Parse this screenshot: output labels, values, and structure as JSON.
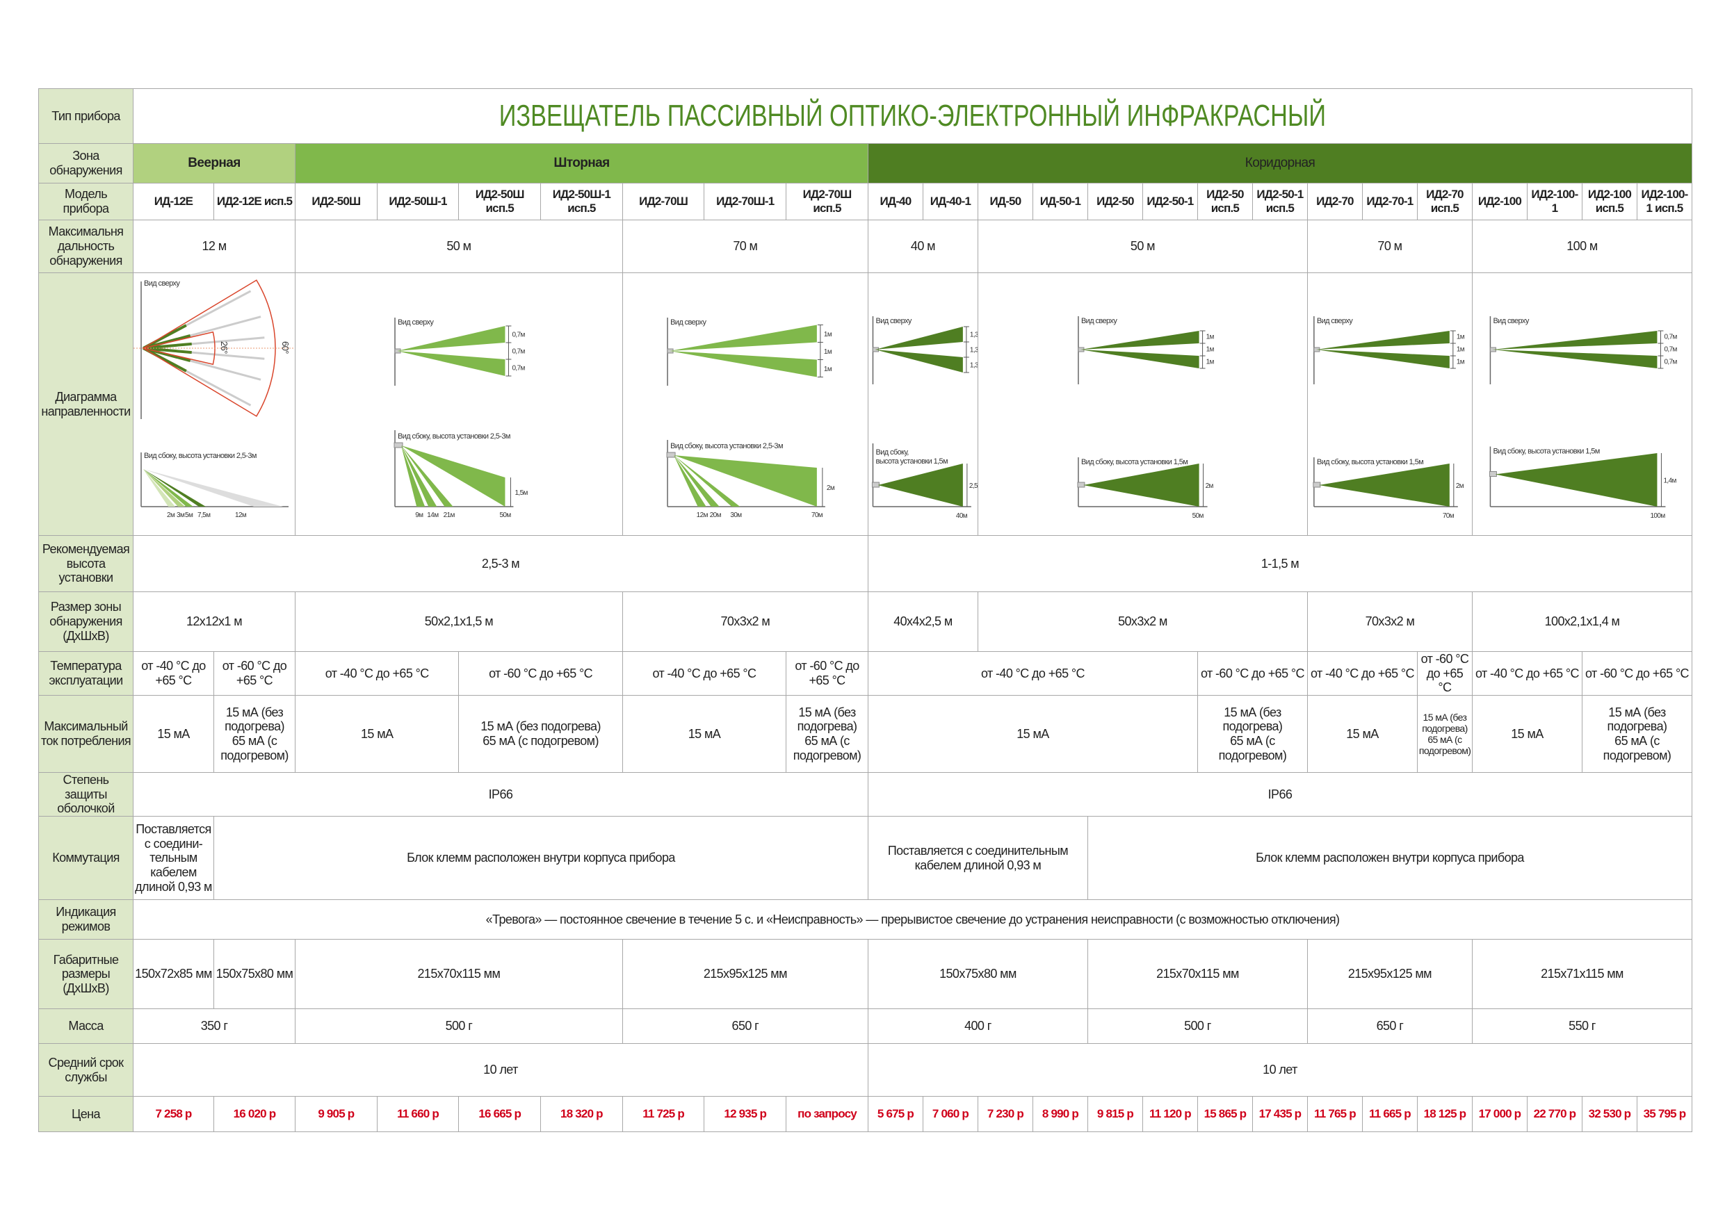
{
  "row_labels": {
    "type": "Тип прибора",
    "zone": "Зона обнаружения",
    "model": "Модель прибора",
    "range": "Максимальня дальность обнаружения",
    "diagram": "Диаграмма направленности",
    "height": "Рекомендуемая высота установки",
    "size": "Размер зоны обнаружения (ДхШхВ)",
    "temp": "Температура эксплуатации",
    "current": "Максимальный ток потребления",
    "ip": "Степень защиты оболочкой",
    "comm": "Коммутация",
    "indication": "Индикация режимов",
    "dims": "Габаритные размеры (ДхШхВ)",
    "mass": "Масса",
    "service": "Средний срок службы",
    "price": "Цена"
  },
  "title": "ИЗВЕЩАТЕЛЬ ПАССИВНЫЙ ОПТИКО-ЭЛЕКТРОННЫЙ ИНФРАКРАСНЫЙ",
  "zones": [
    {
      "label": "Веерная",
      "color": "#b1d17f"
    },
    {
      "label": "Шторная",
      "color": "#80b84b"
    },
    {
      "label": "Коридорная",
      "color": "#4f7e22"
    }
  ],
  "models": [
    "ИД-12Е",
    "ИД2-12Е исп.5",
    "ИД2-50Ш",
    "ИД2-50Ш-1",
    "ИД2-50Ш исп.5",
    "ИД2-50Ш-1 исп.5",
    "ИД2-70Ш",
    "ИД2-70Ш-1",
    "ИД2-70Ш исп.5",
    "ИД-40",
    "ИД-40-1",
    "ИД-50",
    "ИД-50-1",
    "ИД2-50",
    "ИД2-50-1",
    "ИД2-50 исп.5",
    "ИД2-50-1 исп.5",
    "ИД2-70",
    "ИД2-70-1",
    "ИД2-70 исп.5",
    "ИД2-100",
    "ИД2-100-1",
    "ИД2-100 исп.5",
    "ИД2-100-1 исп.5"
  ],
  "range": [
    "12 м",
    "50 м",
    "70 м",
    "40 м",
    "50 м",
    "70 м",
    "100 м"
  ],
  "diagrams": [
    {
      "type": "fan",
      "top_label": "Вид сверху",
      "angles": [
        "26°",
        "60°"
      ],
      "side_label": "Вид сбоку, высота установки 2,5-3м",
      "distances": [
        "2м",
        "3м",
        "5м",
        "7,5м",
        "12м"
      ]
    },
    {
      "type": "curtain",
      "color": "#80b84b",
      "top_label": "Вид сверху",
      "widths": [
        "0,7м",
        "0,7м",
        "0,7м"
      ],
      "side_label": "Вид сбоку, высота установки 2,5-3м",
      "height": "1,5м",
      "distances": [
        "9м",
        "14м",
        "21м",
        "50м"
      ]
    },
    {
      "type": "curtain",
      "color": "#80b84b",
      "top_label": "Вид сверху",
      "widths": [
        "1м",
        "1м",
        "1м"
      ],
      "side_label": "Вид сбоку, высота установки 2,5-3м",
      "height": "2м",
      "distances": [
        "12м",
        "20м",
        "30м",
        "70м"
      ]
    },
    {
      "type": "corridor",
      "color": "#4f7e22",
      "top_label": "Вид сверху",
      "widths": [
        "1,3м",
        "1,3м",
        "1,3м"
      ],
      "side_label": [
        "Вид сбоку,",
        "высота установки 1,5м"
      ],
      "height": "2,5м",
      "distances": [
        "40м"
      ]
    },
    {
      "type": "corridor",
      "color": "#4f7e22",
      "top_label": "Вид сверху",
      "widths": [
        "1м",
        "1м",
        "1м"
      ],
      "side_label": [
        "Вид сбоку, высота установки 1,5м"
      ],
      "height": "2м",
      "distances": [
        "50м"
      ]
    },
    {
      "type": "corridor",
      "color": "#4f7e22",
      "top_label": "Вид сверху",
      "widths": [
        "1м",
        "1м",
        "1м"
      ],
      "side_label": [
        "Вид сбоку, высота установки 1,5м"
      ],
      "height": "2м",
      "distances": [
        "70м"
      ]
    },
    {
      "type": "corridor",
      "color": "#4f7e22",
      "top_label": "Вид сверху",
      "widths": [
        "0,7м",
        "0,7м",
        "0,7м"
      ],
      "side_label": [
        "Вид сбоку, высота установки 1,5м"
      ],
      "height": "1,4м",
      "distances": [
        "100м"
      ]
    }
  ],
  "install_height": [
    "2,5-3 м",
    "1-1,5 м"
  ],
  "zone_size": [
    "12x12x1 м",
    "50x2,1x1,5 м",
    "70x3x2 м",
    "40x4x2,5 м",
    "50x3x2 м",
    "70x3x2 м",
    "100x2,1x1,4 м"
  ],
  "temp": {
    "t40": "от -40 °C до +65 °C",
    "t60": "от -60 °C до +65 °C"
  },
  "current": {
    "base": "15 мА",
    "no_heat": "15 мА (без подогрева)",
    "heat": "65 мА (с подогревом)"
  },
  "ip": [
    "IP66",
    "IP66"
  ],
  "comm": {
    "cable_narrow": "Поставляется с соедини-тельным кабелем длиной 0,93 м",
    "terminal": "Блок клемм расположен внутри корпуса прибора",
    "cable": "Поставляется с соединительным кабелем длиной 0,93 м"
  },
  "indication": "«Тревога» — постоянное свечение в течение 5 с. и «Неисправность» — прерывистое свечение до устранения неисправности (с возможностью отключения)",
  "dims": [
    "150x72x85 мм",
    "150x75x80 мм",
    "215x70x115 мм",
    "215x95x125 мм",
    "150x75x80 мм",
    "215x70x115 мм",
    "215x95x125 мм",
    "215x71x115 мм"
  ],
  "mass": [
    "350 г",
    "500 г",
    "650 г",
    "400 г",
    "500 г",
    "650 г",
    "550 г"
  ],
  "service": [
    "10 лет",
    "10 лет"
  ],
  "prices": [
    "7 258 р",
    "16 020 р",
    "9 905 р",
    "11 660 р",
    "16 665 р",
    "18 320 р",
    "11 725 р",
    "12 935 р",
    "по запросу",
    "5 675 р",
    "7 060 р",
    "7 230 р",
    "8 990 р",
    "9 815 р",
    "11 120 р",
    "15 865 р",
    "17 435 р",
    "11 765 р",
    "11 665 р",
    "18 125 р",
    "17 000 р",
    "22 770 р",
    "32 530 р",
    "35 795 р"
  ],
  "colors": {
    "label_bg": "#dde8c9",
    "title": "#4f8a23",
    "price": "#d0021b",
    "fan_outline": "#d9452b"
  }
}
